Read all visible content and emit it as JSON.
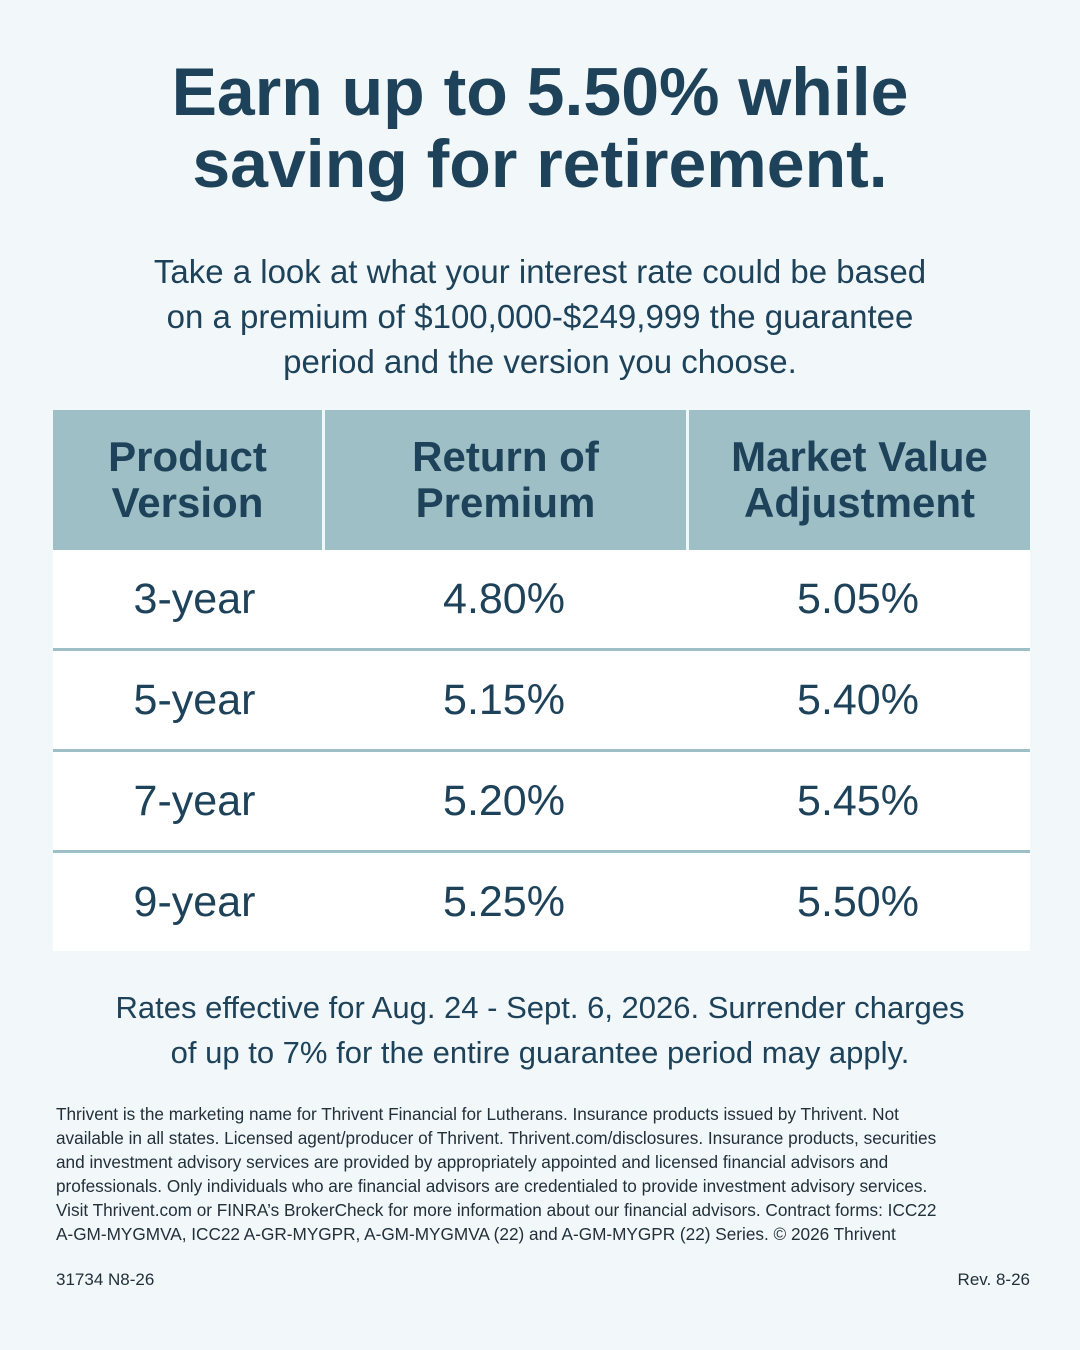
{
  "headline": {
    "line1": "Earn up to 5.50% while",
    "line2": "saving for retirement."
  },
  "intro": {
    "line1": "Take a look at what your interest rate could be based",
    "line2": "on a premium of $100,000-$249,999 the guarantee",
    "line3": "period and the version you choose."
  },
  "table": {
    "headers": [
      {
        "line1": "Product",
        "line2": "Version"
      },
      {
        "line1": "Return of",
        "line2": "Premium"
      },
      {
        "line1": "Market Value",
        "line2": "Adjustment"
      }
    ],
    "rows": [
      {
        "version": "3-year",
        "return_of_premium": "4.80%",
        "market_value_adjustment": "5.05%"
      },
      {
        "version": "5-year",
        "return_of_premium": "5.15%",
        "market_value_adjustment": "5.40%"
      },
      {
        "version": "7-year",
        "return_of_premium": "5.20%",
        "market_value_adjustment": "5.45%"
      },
      {
        "version": "9-year",
        "return_of_premium": "5.25%",
        "market_value_adjustment": "5.50%"
      }
    ]
  },
  "rates_note": {
    "line1": "Rates effective for Aug. 24 - Sept. 6, 2026. Surrender charges",
    "line2": "of up to 7% for the entire guarantee period may apply."
  },
  "disclosure": {
    "lines": [
      "Thrivent is the marketing name for Thrivent Financial for Lutherans. Insurance products issued by Thrivent. Not",
      "available in all states. Licensed agent/producer of Thrivent. Thrivent.com/disclosures. Insurance products, securities",
      "and investment advisory services are provided by appropriately appointed and licensed financial advisors and",
      "professionals. Only individuals who are financial advisors are credentialed to provide investment advisory services.",
      "Visit Thrivent.com or FINRA’s BrokerCheck for more information about our financial advisors. Contract forms: ICC22",
      "A-GM-MYGMVA, ICC22 A-GR-MYGPR, A-GM-MYGMVA (22) and A-GM-MYGPR (22) Series. © 2026 Thrivent"
    ]
  },
  "footer": {
    "code": "31734 N8-26",
    "revision": "Rev. 8-26"
  },
  "colors": {
    "background": "#f2f7f9",
    "text": "#1d4259",
    "table_header": "#9dbfc5",
    "row_background": "#ffffff"
  }
}
